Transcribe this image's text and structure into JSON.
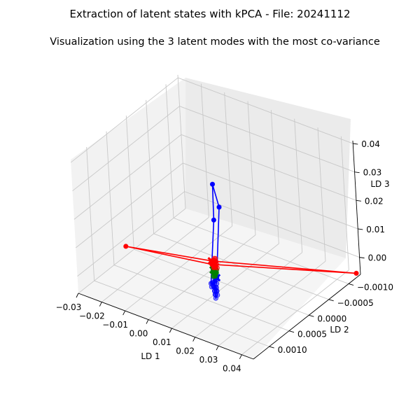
{
  "figure": {
    "suptitle": "Extraction of latent states with kPCA - File: 20241112",
    "title": "Visualization using the 3 latent modes with the most co-variance"
  },
  "chart_data": {
    "type": "scatter",
    "projection": "3d",
    "xlabel": "LD 1",
    "ylabel": "LD 2",
    "zlabel": "LD 3",
    "xlim": [
      -0.03,
      0.045
    ],
    "ylim": [
      -0.0013,
      0.0014
    ],
    "zlim": [
      -0.006,
      0.041
    ],
    "xticks": [
      "−0.03",
      "−0.02",
      "−0.01",
      "0.00",
      "0.01",
      "0.02",
      "0.03",
      "0.04"
    ],
    "xtick_values": [
      -0.03,
      -0.02,
      -0.01,
      0.0,
      0.01,
      0.02,
      0.03,
      0.04
    ],
    "yticks": [
      "−0.0010",
      "−0.0005",
      "0.0000",
      "0.0005",
      "0.0010"
    ],
    "ytick_values": [
      -0.001,
      -0.0005,
      0.0,
      0.0005,
      0.001
    ],
    "zticks": [
      "0.00",
      "0.01",
      "0.02",
      "0.03",
      "0.04"
    ],
    "ztick_values": [
      0.0,
      0.01,
      0.02,
      0.03,
      0.04
    ],
    "grid": true,
    "series": [
      {
        "color": "#0000ff",
        "marker_start": "x",
        "x": [
          0.011,
          0.012,
          0.0115,
          0.013,
          0.012,
          0.0125,
          0.014,
          0.016,
          0.018,
          0.019,
          0.017,
          0.015,
          0.013,
          0.016,
          0.018,
          0.02,
          0.021,
          0.019,
          0.017,
          0.015,
          0.0135,
          0.012,
          0.0105,
          0.0125,
          0.0145
        ],
        "y": [
          0.0003,
          0.0002,
          0.0003,
          0.0004,
          0.0005,
          0.0005,
          0.0006,
          0.0006,
          0.0007,
          0.0008,
          0.0007,
          0.0006,
          0.0005,
          0.0006,
          0.0007,
          0.0008,
          0.0009,
          0.0008,
          0.0007,
          0.0006,
          0.0005,
          0.0004,
          0.0003,
          0.0004,
          0.0005
        ],
        "z": [
          0.0,
          0.024,
          0.033,
          0.022,
          0.0005,
          0.0008,
          0.001,
          0.0012,
          0.0018,
          0.0021,
          0.0016,
          0.0014,
          0.0011,
          0.0015,
          0.0019,
          0.0022,
          0.0025,
          0.002,
          0.0016,
          0.0013,
          0.0009,
          0.0006,
          0.0003,
          0.0008,
          0.0012
        ]
      },
      {
        "color": "#008000",
        "marker_start": "x",
        "x": [
          0.006,
          0.007,
          0.008,
          0.009,
          0.0095,
          0.0085,
          0.0075,
          0.0065,
          0.0078,
          0.0088,
          0.0098,
          0.0105,
          0.0092,
          0.0082,
          0.0072,
          0.0068,
          0.0079,
          0.0091,
          0.0101,
          0.0087
        ],
        "y": [
          0.0001,
          0.0001,
          0.0002,
          0.0002,
          0.0003,
          0.0002,
          0.0001,
          0.0001,
          0.0002,
          0.0002,
          0.0003,
          0.0003,
          0.0002,
          0.0002,
          0.0001,
          0.0001,
          0.0002,
          0.0002,
          0.0003,
          0.0002
        ],
        "z": [
          -0.001,
          -0.0008,
          -0.0005,
          -0.0002,
          0.0,
          -0.0003,
          -0.0006,
          -0.0009,
          -0.0004,
          -0.0001,
          0.0002,
          0.0004,
          0.0001,
          -0.0002,
          -0.0005,
          -0.0007,
          -0.0003,
          0.0,
          0.0003,
          -0.0001
        ]
      },
      {
        "color": "#ff0000",
        "marker_start": "x",
        "x": [
          0.0,
          -0.028,
          0.002,
          0.045,
          0.001,
          0.003,
          0.0045,
          0.002,
          0.0005,
          -0.0005,
          0.0015,
          0.003,
          0.0045,
          0.0055,
          0.0025,
          0.001,
          0.0,
          0.002,
          0.0035,
          0.005,
          0.0035,
          0.0015,
          0.0025,
          0.004,
          0.006
        ],
        "y": [
          -0.0002,
          0.0003,
          -0.0001,
          -0.0012,
          -0.0002,
          -0.0001,
          0.0,
          -0.0001,
          -0.0002,
          -0.0003,
          -0.0002,
          -0.0001,
          0.0,
          0.0,
          -0.0001,
          -0.0002,
          -0.0003,
          -0.0002,
          -0.0001,
          0.0,
          -0.0001,
          -0.0002,
          -0.0001,
          -0.0001,
          0.0
        ],
        "z": [
          -0.003,
          -0.001,
          -0.0025,
          -0.0045,
          -0.0028,
          -0.0022,
          -0.0018,
          -0.0024,
          -0.003,
          -0.0034,
          -0.0027,
          -0.0021,
          -0.0016,
          -0.0013,
          -0.0023,
          -0.0029,
          -0.0033,
          -0.0026,
          -0.002,
          -0.0015,
          -0.0019,
          -0.0025,
          -0.0022,
          -0.0018,
          -0.0014
        ]
      }
    ]
  }
}
